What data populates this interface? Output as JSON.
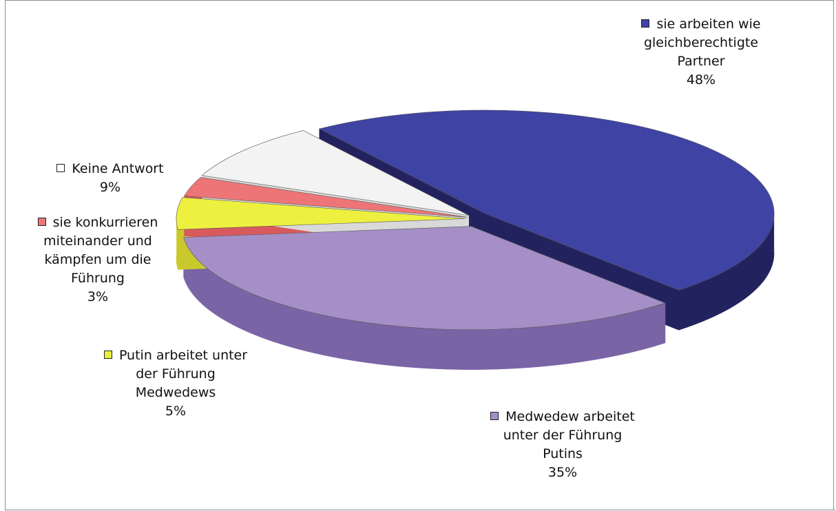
{
  "chart_data": {
    "type": "pie",
    "title": "",
    "series": [
      {
        "key": "partner",
        "label_lines": [
          "sie arbeiten wie",
          "gleichberechtigte",
          "Partner"
        ],
        "pct_label": "48%",
        "value": 48,
        "color": "#3f43a4",
        "side_color": "#22235e"
      },
      {
        "key": "medwedew",
        "label_lines": [
          "Medwedew arbeitet",
          "unter der Führung",
          "Putins"
        ],
        "pct_label": "35%",
        "value": 35,
        "color": "#a58fc6",
        "side_color": "#7a64a6"
      },
      {
        "key": "putin",
        "label_lines": [
          "Putin arbeitet unter",
          "der Führung",
          "Medwedews"
        ],
        "pct_label": "5%",
        "value": 5,
        "color": "#eef03f",
        "side_color": "#c9c92e"
      },
      {
        "key": "konkurr",
        "label_lines": [
          "sie konkurrieren",
          "miteinander und",
          "kämpfen um die",
          "Führung"
        ],
        "pct_label": "3%",
        "value": 3,
        "color": "#ee7577",
        "side_color": "#d95a5c"
      },
      {
        "key": "keine",
        "label_lines": [
          "Keine Antwort"
        ],
        "pct_label": "9%",
        "value": 9,
        "color": "#f3f3f3",
        "side_color": "#d9d9d9"
      }
    ],
    "legend": "none",
    "grid": false
  }
}
